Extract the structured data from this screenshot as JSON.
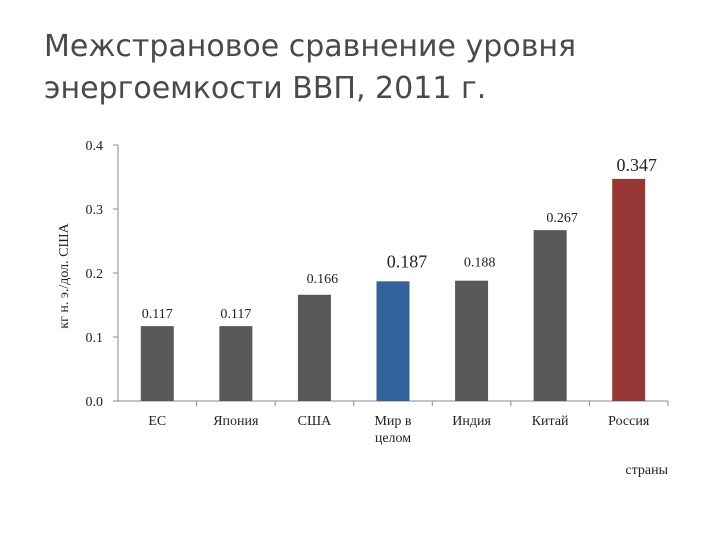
{
  "title": "Межстрановое сравнение уровня энергоемкости ВВП, 2011 г.",
  "chart_data": {
    "type": "bar",
    "categories": [
      "ЕС",
      "Япония",
      "США",
      "Мир в целом",
      "Индия",
      "Китай",
      "Россия"
    ],
    "values": [
      0.117,
      0.117,
      0.166,
      0.187,
      0.188,
      0.267,
      0.347
    ],
    "value_labels": [
      "0.117",
      "0.117",
      "0.166",
      "0.187",
      "0.188",
      "0.267",
      "0.347"
    ],
    "bar_colors": [
      "#595959",
      "#595959",
      "#595959",
      "#336199",
      "#595959",
      "#595959",
      "#953735"
    ],
    "ylabel": "кг н. э./дол. США",
    "xlabel": "страны",
    "ylim": [
      0,
      0.4
    ],
    "yticks": [
      "0.0",
      "0.1",
      "0.2",
      "0.3",
      "0.4"
    ],
    "grid": false,
    "legend": "none"
  }
}
